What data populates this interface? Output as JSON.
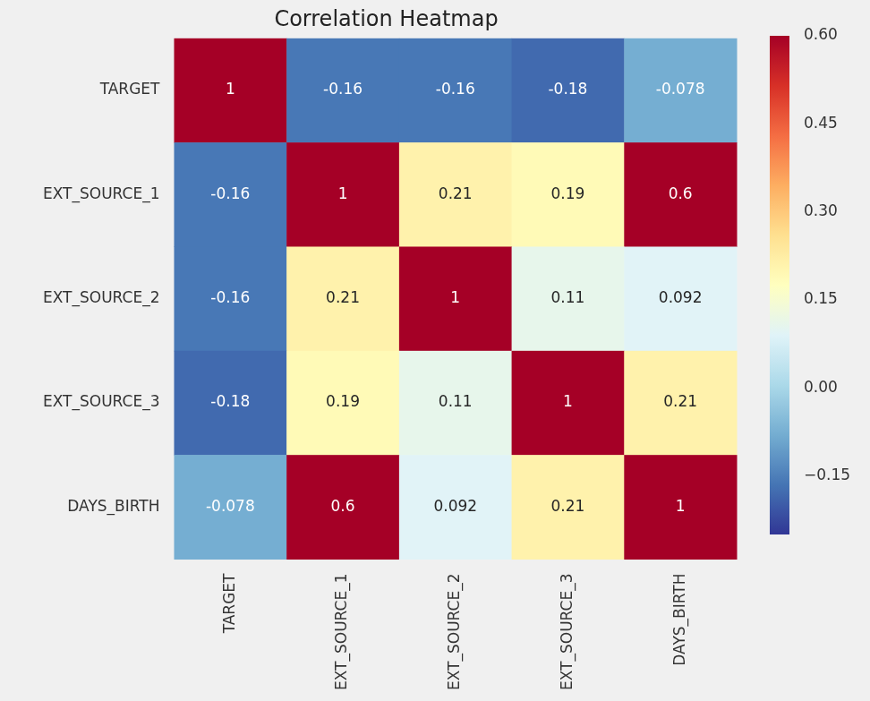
{
  "chart_data": {
    "type": "heatmap",
    "title": "Correlation Heatmap",
    "x_categories": [
      "TARGET",
      "EXT_SOURCE_1",
      "EXT_SOURCE_2",
      "EXT_SOURCE_3",
      "DAYS_BIRTH"
    ],
    "y_categories": [
      "TARGET",
      "EXT_SOURCE_1",
      "EXT_SOURCE_2",
      "EXT_SOURCE_3",
      "DAYS_BIRTH"
    ],
    "cells": [
      [
        1,
        -0.16,
        -0.16,
        -0.18,
        -0.078
      ],
      [
        -0.16,
        1,
        0.21,
        0.19,
        0.6
      ],
      [
        -0.16,
        0.21,
        1,
        0.11,
        0.092
      ],
      [
        -0.18,
        0.19,
        0.11,
        1,
        0.21
      ],
      [
        -0.078,
        0.6,
        0.092,
        0.21,
        1
      ]
    ],
    "data_labels": true,
    "colorbar": {
      "range": [
        -0.25,
        0.6
      ],
      "ticks": [
        {
          "value": -0.15,
          "label": "−0.15"
        },
        {
          "value": 0,
          "label": "0.00"
        },
        {
          "value": 0.15,
          "label": "0.15"
        },
        {
          "value": 0.3,
          "label": "0.30"
        },
        {
          "value": 0.45,
          "label": "0.45"
        },
        {
          "value": 0.6,
          "label": "0.60"
        }
      ]
    }
  }
}
